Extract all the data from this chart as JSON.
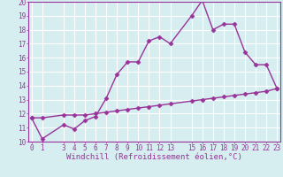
{
  "xlabel": "Windchill (Refroidissement éolien,°C)",
  "x": [
    0,
    1,
    3,
    4,
    5,
    6,
    7,
    8,
    9,
    10,
    11,
    12,
    13,
    15,
    16,
    17,
    18,
    19,
    20,
    21,
    22,
    23
  ],
  "y_line1": [
    11.7,
    10.2,
    11.2,
    10.9,
    11.5,
    11.8,
    13.1,
    14.8,
    15.7,
    15.7,
    17.2,
    17.5,
    17.0,
    19.0,
    20.1,
    18.0,
    18.4,
    18.4,
    16.4,
    15.5,
    15.5,
    13.8
  ],
  "y_line2": [
    11.7,
    11.7,
    11.9,
    11.9,
    11.9,
    12.0,
    12.1,
    12.2,
    12.3,
    12.4,
    12.5,
    12.6,
    12.7,
    12.9,
    13.0,
    13.1,
    13.2,
    13.3,
    13.4,
    13.5,
    13.6,
    13.8
  ],
  "line_color": "#993399",
  "bg_color": "#d6eef0",
  "grid_color": "#ffffff",
  "ylim": [
    10,
    20
  ],
  "xlim": [
    -0.3,
    23.3
  ],
  "yticks": [
    10,
    11,
    12,
    13,
    14,
    15,
    16,
    17,
    18,
    19,
    20
  ],
  "xticks": [
    0,
    1,
    3,
    4,
    5,
    6,
    7,
    8,
    9,
    10,
    11,
    12,
    13,
    15,
    16,
    17,
    18,
    19,
    20,
    21,
    22,
    23
  ],
  "marker": "D",
  "markersize": 2.5,
  "linewidth": 1.0,
  "tick_fontsize": 5.5,
  "xlabel_fontsize": 6.5
}
